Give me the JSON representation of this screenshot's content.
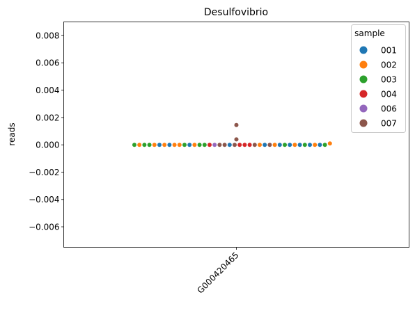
{
  "chart_data": {
    "type": "scatter",
    "subtype": "swarm",
    "title": "Desulfovibrio",
    "xlabel": "",
    "ylabel": "reads",
    "categories": [
      "G000420465"
    ],
    "ylim": [
      -0.0075,
      0.009
    ],
    "yticks": [
      -0.006,
      -0.004,
      -0.002,
      0.0,
      0.002,
      0.004,
      0.006,
      0.008
    ],
    "ytick_labels": [
      "−0.006",
      "−0.004",
      "−0.002",
      "0.000",
      "0.002",
      "0.004",
      "0.006",
      "0.008"
    ],
    "grid": false,
    "legend": {
      "title": "sample",
      "placement": "top-right"
    },
    "series": [
      {
        "name": "001",
        "color": "#1f77b4"
      },
      {
        "name": "002",
        "color": "#ff7f0e"
      },
      {
        "name": "003",
        "color": "#2ca02c"
      },
      {
        "name": "004",
        "color": "#d62728"
      },
      {
        "name": "006",
        "color": "#9467bd"
      },
      {
        "name": "007",
        "color": "#8c564b"
      }
    ],
    "points": [
      {
        "series": "003",
        "y": 0
      },
      {
        "series": "002",
        "y": 0
      },
      {
        "series": "003",
        "y": 0
      },
      {
        "series": "003",
        "y": 0
      },
      {
        "series": "002",
        "y": 0
      },
      {
        "series": "001",
        "y": 0
      },
      {
        "series": "002",
        "y": 0
      },
      {
        "series": "001",
        "y": 0
      },
      {
        "series": "002",
        "y": 0
      },
      {
        "series": "002",
        "y": 0
      },
      {
        "series": "003",
        "y": 0
      },
      {
        "series": "001",
        "y": 0
      },
      {
        "series": "002",
        "y": 0
      },
      {
        "series": "003",
        "y": 0
      },
      {
        "series": "003",
        "y": 0
      },
      {
        "series": "004",
        "y": 0
      },
      {
        "series": "006",
        "y": 0
      },
      {
        "series": "007",
        "y": 0
      },
      {
        "series": "007",
        "y": 0
      },
      {
        "series": "001",
        "y": 0
      },
      {
        "series": "007",
        "y": 0
      },
      {
        "series": "004",
        "y": 0
      },
      {
        "series": "004",
        "y": 0
      },
      {
        "series": "004",
        "y": 0
      },
      {
        "series": "007",
        "y": 0
      },
      {
        "series": "002",
        "y": 0
      },
      {
        "series": "001",
        "y": 0
      },
      {
        "series": "007",
        "y": 0
      },
      {
        "series": "002",
        "y": 0
      },
      {
        "series": "001",
        "y": 0
      },
      {
        "series": "003",
        "y": 0
      },
      {
        "series": "001",
        "y": 0
      },
      {
        "series": "002",
        "y": 0
      },
      {
        "series": "001",
        "y": 0
      },
      {
        "series": "003",
        "y": 0
      },
      {
        "series": "001",
        "y": 0
      },
      {
        "series": "002",
        "y": 0
      },
      {
        "series": "001",
        "y": 0
      },
      {
        "series": "003",
        "y": 0
      },
      {
        "series": "002",
        "y": 0.0001
      },
      {
        "series": "007",
        "y": 0.0004
      },
      {
        "series": "007",
        "y": 0.00145
      }
    ]
  }
}
